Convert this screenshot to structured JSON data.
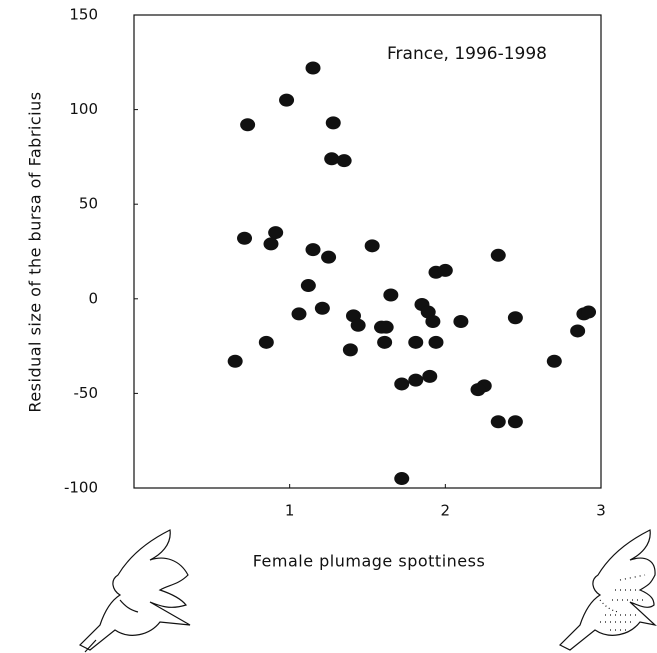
{
  "chart_data": {
    "type": "scatter",
    "annotation": "France, 1996-1998",
    "x_label": "Female plumage spottiness",
    "y_label": "Residual size of the bursa of Fabricius",
    "color": "#111111",
    "xlim": [
      0,
      3
    ],
    "ylim": [
      -100,
      150
    ],
    "xticks": [
      1,
      2,
      3
    ],
    "yticks": [
      -100,
      -50,
      0,
      50,
      100,
      150
    ],
    "x": [
      0.73,
      0.98,
      1.15,
      1.28,
      1.27,
      1.35,
      0.71,
      0.91,
      0.88,
      1.15,
      1.25,
      1.53,
      1.12,
      1.06,
      1.21,
      1.65,
      0.65,
      0.85,
      1.41,
      1.44,
      1.39,
      1.59,
      1.62,
      1.61,
      1.81,
      1.85,
      1.89,
      1.92,
      1.94,
      2.0,
      1.94,
      2.1,
      1.9,
      1.81,
      1.72,
      1.72,
      2.25,
      2.21,
      2.34,
      2.45,
      2.34,
      2.45,
      2.7,
      2.85,
      2.89,
      2.92
    ],
    "values": [
      92,
      105,
      122,
      93,
      74,
      73,
      32,
      35,
      29,
      26,
      22,
      28,
      7,
      -8,
      -5,
      2,
      -33,
      -23,
      -9,
      -14,
      -27,
      -15,
      -15,
      -23,
      -23,
      -3,
      -7,
      -12,
      14,
      15,
      -23,
      -12,
      -41,
      -43,
      -45,
      -95,
      -46,
      -48,
      23,
      -10,
      -65,
      -65,
      -33,
      -17,
      -8,
      -7
    ]
  }
}
